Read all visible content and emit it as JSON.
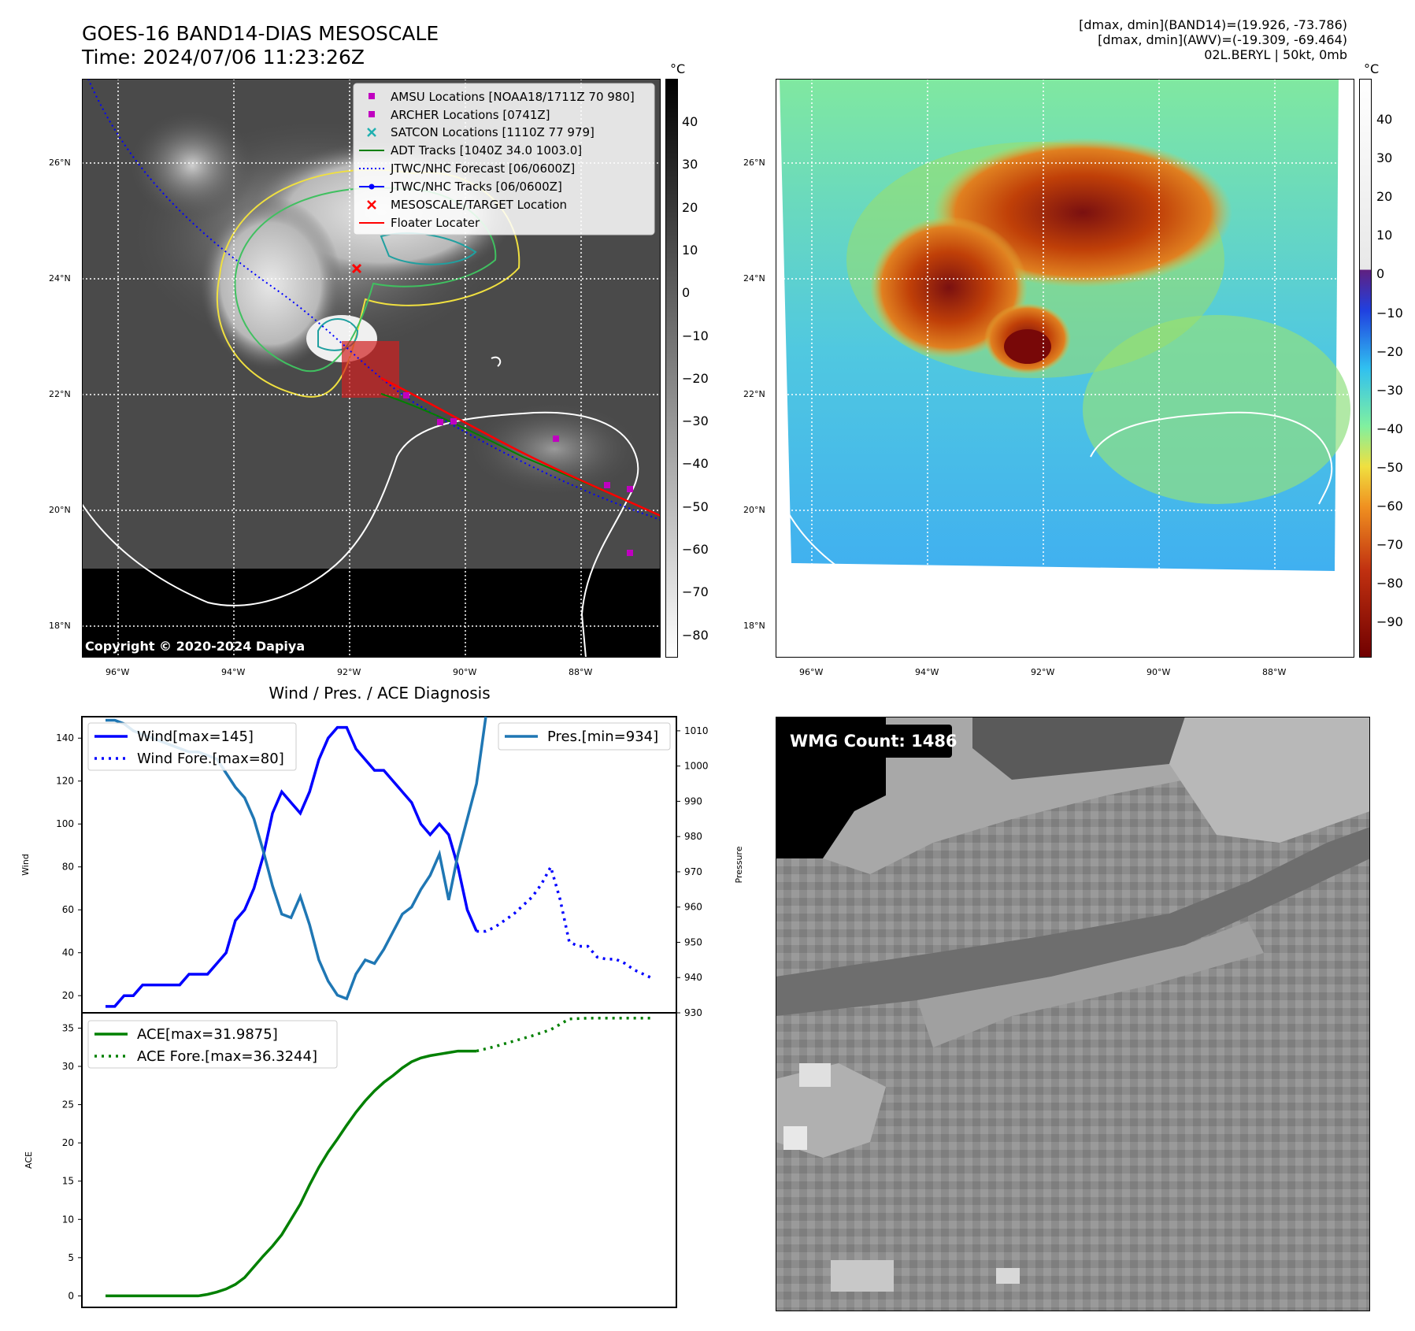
{
  "header": {
    "title_line1": "GOES-16 BAND14-DIAS MESOSCALE",
    "title_line2": "Time: 2024/07/06 11:23:26Z",
    "info_line1": "[dmax, dmin](BAND14)=(19.926, -73.786)",
    "info_line2": "[dmax, dmin](AWV)=(-19.309, -69.464)",
    "info_line3": "02L.BERYL | 50kt, 0mb"
  },
  "map": {
    "lat_labels": [
      "26°N",
      "24°N",
      "22°N",
      "20°N",
      "18°N"
    ],
    "lon_labels": [
      "96°W",
      "94°W",
      "92°W",
      "90°W",
      "88°W"
    ],
    "copyright": "Copyright © 2020-2024 Dapiya",
    "legend": [
      {
        "label": "AMSU Locations [NOAA18/1711Z 70 980]",
        "color": "#c000c0",
        "marker": "square"
      },
      {
        "label": "ARCHER Locations [0741Z]",
        "color": "#c000c0",
        "marker": "square"
      },
      {
        "label": "SATCON Locations [1110Z 77 979]",
        "color": "#20b0b0",
        "marker": "x"
      },
      {
        "label": "ADT Tracks [1040Z 34.0 1003.0]",
        "color": "#008000",
        "marker": "line"
      },
      {
        "label": "JTWC/NHC Forecast [06/0600Z]",
        "color": "#0000ff",
        "marker": "dotted"
      },
      {
        "label": "JTWC/NHC Tracks [06/0600Z]",
        "color": "#0000ff",
        "marker": "line-dot"
      },
      {
        "label": "MESOSCALE/TARGET Location",
        "color": "#ff0000",
        "marker": "x"
      },
      {
        "label": "Floater Locater",
        "color": "#ff0000",
        "marker": "line"
      }
    ]
  },
  "colorbars": {
    "unit": "°C",
    "gray_ticks": [
      "40",
      "30",
      "20",
      "10",
      "0",
      "−10",
      "−20",
      "−30",
      "−40",
      "−50",
      "−60",
      "−70",
      "−80"
    ],
    "color_ticks": [
      "40",
      "30",
      "20",
      "10",
      "0",
      "−10",
      "−20",
      "−30",
      "−40",
      "−50",
      "−60",
      "−70",
      "−80",
      "−90"
    ]
  },
  "wmg": {
    "label": "WMG Count: 1486"
  },
  "chart_data": [
    {
      "type": "line",
      "title": "Wind / Pres. / ACE Diagnosis",
      "ylabel": "Wind",
      "y2label": "Pressure",
      "ylim": [
        12,
        150
      ],
      "y2lim": [
        930,
        1014
      ],
      "yticks": [
        20,
        40,
        60,
        80,
        100,
        120,
        140
      ],
      "y2ticks": [
        930,
        940,
        950,
        960,
        970,
        980,
        990,
        1000,
        1010
      ],
      "x": [
        0,
        1,
        2,
        3,
        4,
        5,
        6,
        7,
        8,
        9,
        10,
        11,
        12,
        13,
        14,
        15,
        16,
        17,
        18,
        19,
        20,
        21,
        22,
        23,
        24,
        25,
        26,
        27,
        28,
        29,
        30,
        31,
        32,
        33,
        34,
        35,
        36,
        37,
        38,
        39,
        40
      ],
      "series": [
        {
          "name": "Wind[max=145]",
          "color": "#0000ff",
          "style": "solid",
          "x": [
            0,
            1,
            2,
            3,
            4,
            5,
            6,
            7,
            8,
            9,
            10,
            11,
            12,
            13,
            14,
            15,
            16,
            17,
            18,
            19,
            20,
            21,
            22,
            23,
            24,
            25,
            26,
            27,
            28,
            29,
            30,
            31,
            32,
            33,
            34,
            35,
            36,
            37,
            38,
            39,
            40
          ],
          "values": [
            15,
            15,
            20,
            20,
            25,
            25,
            25,
            25,
            25,
            30,
            30,
            30,
            35,
            40,
            55,
            60,
            70,
            85,
            105,
            115,
            110,
            105,
            115,
            130,
            140,
            145,
            145,
            135,
            130,
            125,
            125,
            120,
            115,
            110,
            100,
            95,
            100,
            95,
            80,
            60,
            50
          ]
        },
        {
          "name": "Wind Fore.[max=80]",
          "color": "#0000ff",
          "style": "dotted",
          "x": [
            40,
            41,
            42,
            43,
            44,
            45,
            46,
            47,
            48,
            49,
            50,
            51,
            52,
            53,
            54,
            55,
            56,
            57,
            58,
            59
          ],
          "values": [
            50,
            50,
            52,
            55,
            58,
            62,
            66,
            72,
            80,
            65,
            45,
            43,
            43,
            38,
            37,
            37,
            35,
            32,
            30,
            28
          ]
        },
        {
          "name": "Pres.[min=934]",
          "color": "#1f77b4",
          "style": "solid",
          "axis": "y2",
          "x": [
            0,
            1,
            2,
            3,
            4,
            5,
            6,
            7,
            8,
            9,
            10,
            11,
            12,
            13,
            14,
            15,
            16,
            17,
            18,
            19,
            20,
            21,
            22,
            23,
            24,
            25,
            26,
            27,
            28,
            29,
            30,
            31,
            32,
            33,
            34,
            35,
            36,
            37,
            38,
            39,
            40,
            41
          ],
          "values": [
            1013,
            1013,
            1012,
            1010,
            1009,
            1008,
            1007,
            1006,
            1005,
            1004,
            1004,
            1003,
            1002,
            998,
            994,
            991,
            985,
            976,
            966,
            958,
            957,
            963,
            955,
            945,
            939,
            935,
            934,
            941,
            945,
            944,
            948,
            953,
            958,
            960,
            965,
            969,
            975,
            962,
            975,
            985,
            995,
            1014
          ]
        }
      ],
      "legend_right": "Pres.[min=934]"
    },
    {
      "type": "line",
      "ylabel": "ACE",
      "ylim": [
        -1.5,
        37
      ],
      "yticks": [
        0,
        5,
        10,
        15,
        20,
        25,
        30,
        35
      ],
      "series": [
        {
          "name": "ACE[max=31.9875]",
          "color": "#008000",
          "style": "solid",
          "x": [
            0,
            5,
            10,
            11,
            12,
            13,
            14,
            15,
            16,
            17,
            18,
            19,
            20,
            21,
            22,
            23,
            24,
            25,
            26,
            27,
            28,
            29,
            30,
            31,
            32,
            33,
            34,
            35,
            36,
            37,
            38,
            39,
            40
          ],
          "values": [
            0,
            0,
            0,
            0.2,
            0.5,
            0.9,
            1.5,
            2.4,
            3.8,
            5.2,
            6.5,
            8,
            10,
            12,
            14.5,
            16.8,
            18.8,
            20.5,
            22.3,
            24,
            25.5,
            26.8,
            27.9,
            28.8,
            29.8,
            30.6,
            31.1,
            31.4,
            31.6,
            31.8,
            32,
            32,
            32
          ]
        },
        {
          "name": "ACE Fore.[max=36.3244]",
          "color": "#008000",
          "style": "dotted",
          "x": [
            40,
            42,
            44,
            46,
            48,
            50,
            52,
            54,
            56,
            58,
            59
          ],
          "values": [
            32,
            32.6,
            33.3,
            34,
            34.8,
            36.2,
            36.3,
            36.3,
            36.3,
            36.3,
            36.3
          ]
        }
      ]
    }
  ]
}
